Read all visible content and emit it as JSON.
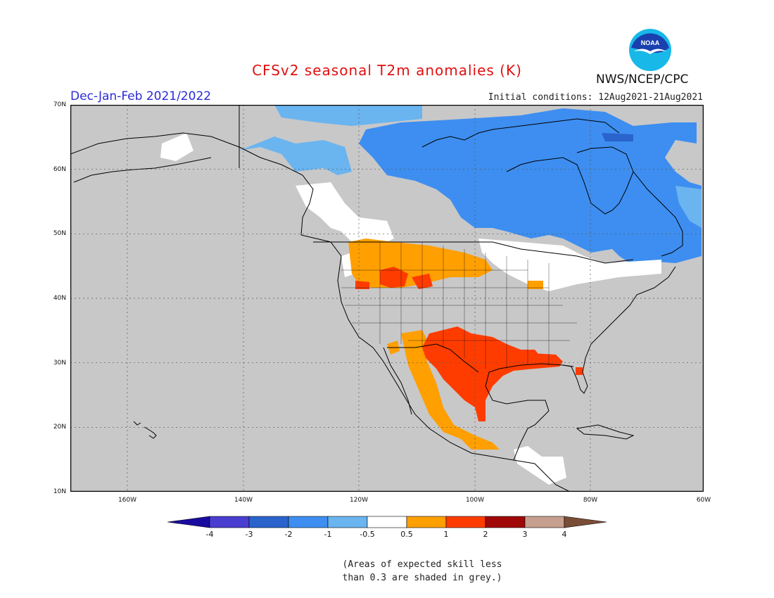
{
  "header": {
    "title": "CFSv2 seasonal T2m anomalies (K)",
    "period": "Dec-Jan-Feb 2021/2022",
    "initial_conditions": "Initial conditions: 12Aug2021-21Aug2021",
    "agency": "NWS/NCEP/CPC",
    "logo_text": "NOAA",
    "logo_colors": {
      "outer": "#1a3fae",
      "inner": "#18b8e8",
      "gull": "#ffffff"
    },
    "title_color": "#e01010",
    "period_color": "#2a2ad8"
  },
  "map": {
    "domain": {
      "lon_min": -172,
      "lon_max": -60,
      "lat_min": 10,
      "lat_max": 70
    },
    "grid_lines": "dotted",
    "lat_labels": [
      "70N",
      "60N",
      "50N",
      "40N",
      "30N",
      "20N",
      "10N"
    ],
    "lon_labels": [
      "160W",
      "140W",
      "120W",
      "100W",
      "80W",
      "60W"
    ],
    "low_skill_color": "#c8c8c8",
    "land_outline_color": "#000000",
    "anomaly_regions": [
      {
        "category": "-1 to -0.5",
        "color": "#6ab4f0",
        "area": "Yukon / Northwest Territories"
      },
      {
        "category": "-2 to -1",
        "color": "#3d8ef0",
        "area": "Canadian Arctic, Hudson Bay, Quebec, Labrador"
      },
      {
        "category": "-0.5 to 0.5",
        "color": "#ffffff",
        "area": "Alaska interior, British Columbia, Great Lakes"
      },
      {
        "category": "0.5 to 1",
        "color": "#ff9f00",
        "area": "Northern Rockies, Northern Plains, northern Mexico"
      },
      {
        "category": "1 to 2",
        "color": "#ff3c00",
        "area": "Texas, Gulf Coast, Florida, central Mexico"
      }
    ]
  },
  "colorbar": {
    "labels": [
      "-4",
      "-3",
      "-2",
      "-1",
      "-0.5",
      "0.5",
      "1",
      "2",
      "3",
      "4"
    ],
    "colors": [
      "#1a0ba0",
      "#4a3ed0",
      "#2a63cc",
      "#3d8ef0",
      "#6ab4f0",
      "#ffffff",
      "#ff9f00",
      "#ff3c00",
      "#a00808",
      "#c69f8e",
      "#7a4d37"
    ]
  },
  "footnote": {
    "line1": "(Areas of expected skill less",
    "line2": "than 0.3 are shaded in grey.)"
  }
}
